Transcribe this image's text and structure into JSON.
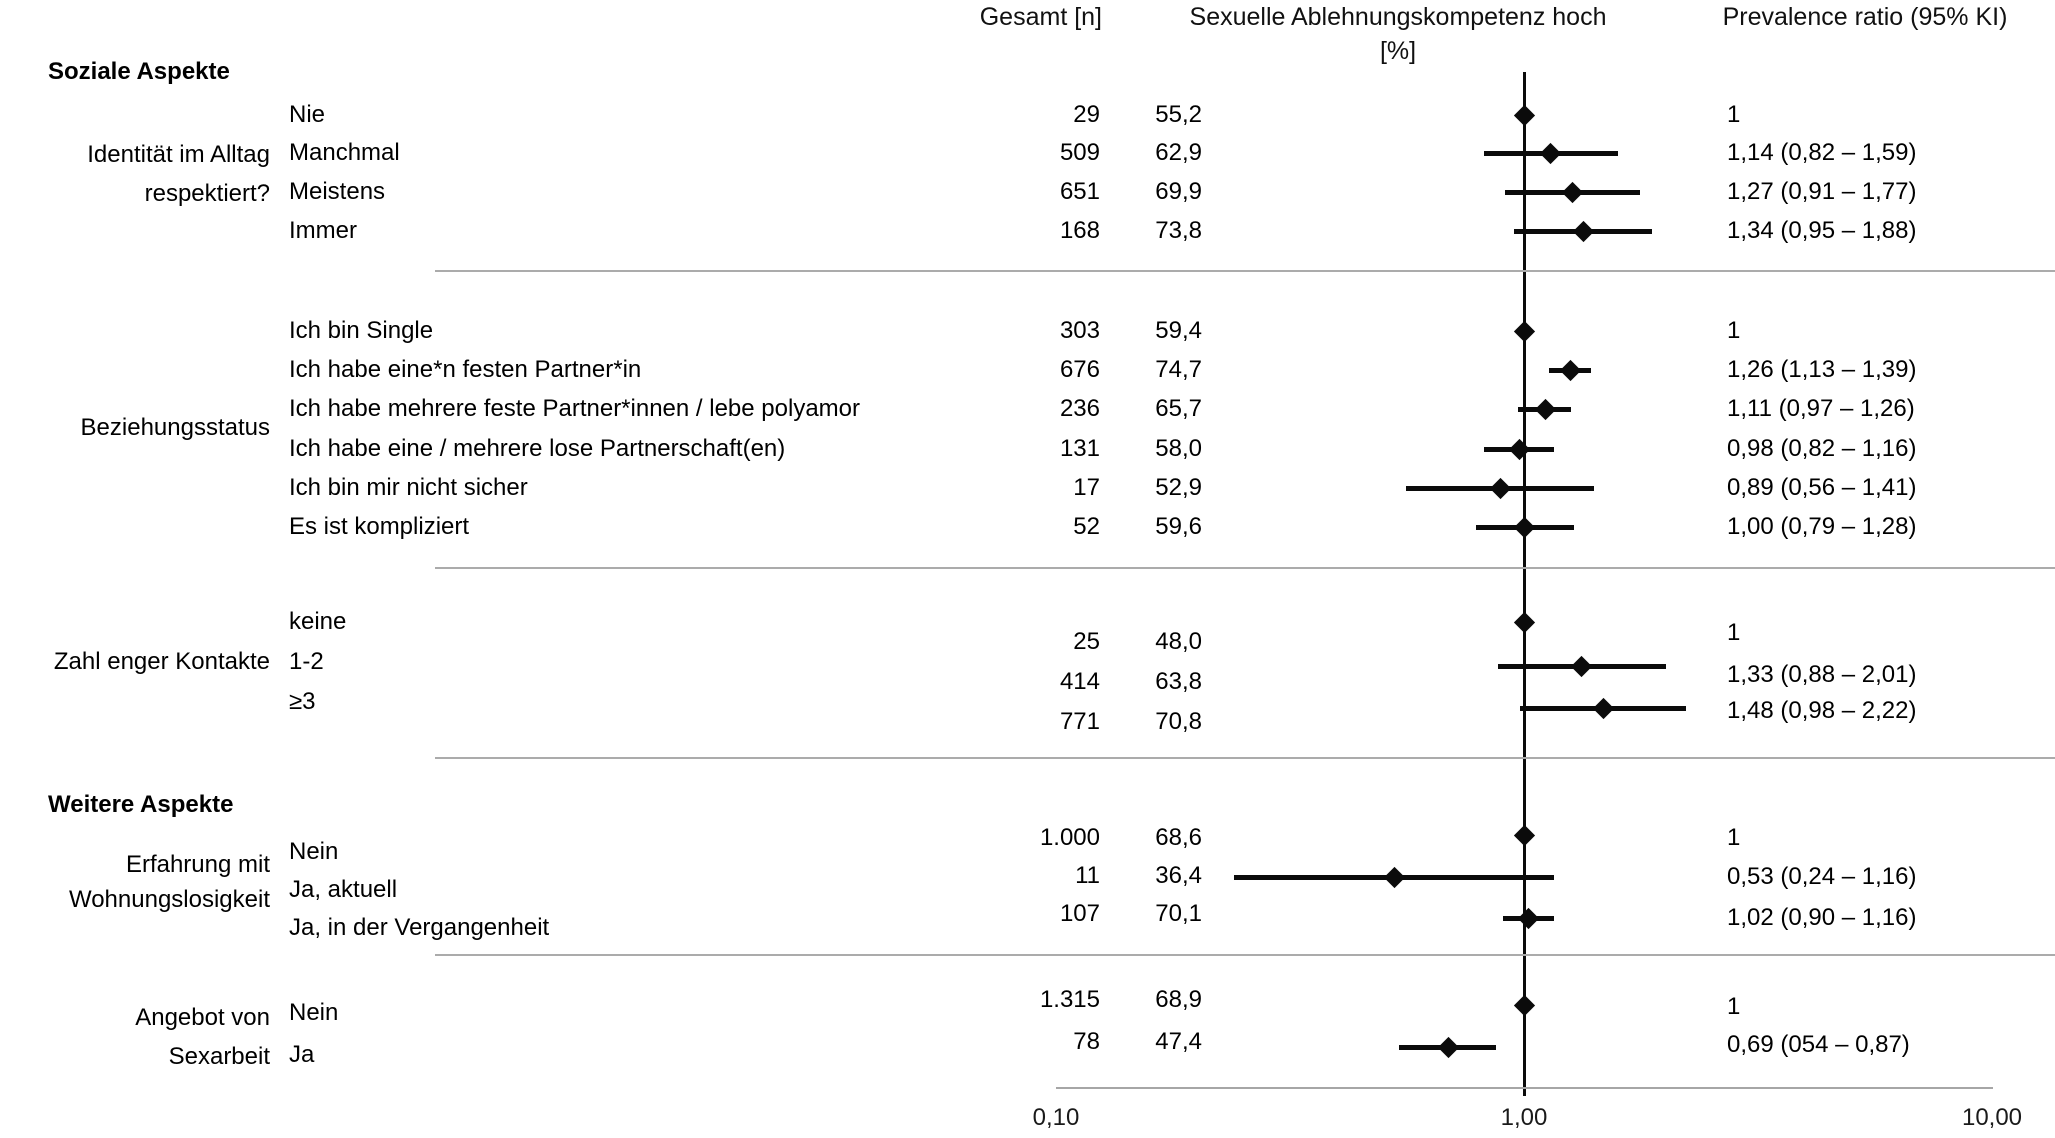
{
  "figure": {
    "columns": {
      "gesamt": "Gesamt [n]",
      "outcome_line1": "Sexuelle Ablehnungskompetenz hoch",
      "outcome_line2": "[%]",
      "pr": "Prevalence ratio (95% KI)"
    },
    "axis": {
      "scale": "log10",
      "ticks": [
        "0,10",
        "1,00",
        "10,00"
      ],
      "tick_values": [
        0.1,
        1.0,
        10.0
      ]
    }
  },
  "chart_data": {
    "type": "scatter",
    "subtype": "forest-plot",
    "title": "",
    "xlabel": "Prevalence ratio (95% KI)",
    "x_scale": "log",
    "xlim": [
      0.1,
      10
    ],
    "grid": false,
    "reference_line": 1.0,
    "sections": [
      {
        "section_header": "Soziale Aspekte",
        "group_label": [
          "Identität im Alltag",
          "respektiert?"
        ],
        "rows": [
          {
            "label": "Nie",
            "n": "29",
            "pct": "55,2",
            "pr_label": "1",
            "pr": 1.0,
            "ci_low": null,
            "ci_high": null,
            "reference": true
          },
          {
            "label": "Manchmal",
            "n": "509",
            "pct": "62,9",
            "pr_label": "1,14 (0,82 – 1,59)",
            "pr": 1.14,
            "ci_low": 0.82,
            "ci_high": 1.59,
            "reference": false
          },
          {
            "label": "Meistens",
            "n": "651",
            "pct": "69,9",
            "pr_label": "1,27 (0,91 – 1,77)",
            "pr": 1.27,
            "ci_low": 0.91,
            "ci_high": 1.77,
            "reference": false
          },
          {
            "label": "Immer",
            "n": "168",
            "pct": "73,8",
            "pr_label": "1,34 (0,95 – 1,88)",
            "pr": 1.34,
            "ci_low": 0.95,
            "ci_high": 1.88,
            "reference": false
          }
        ]
      },
      {
        "section_header": null,
        "group_label": [
          "Beziehungsstatus"
        ],
        "rows": [
          {
            "label": "Ich bin Single",
            "n": "303",
            "pct": "59,4",
            "pr_label": "1",
            "pr": 1.0,
            "ci_low": null,
            "ci_high": null,
            "reference": true
          },
          {
            "label": "Ich habe eine*n festen Partner*in",
            "n": "676",
            "pct": "74,7",
            "pr_label": "1,26 (1,13 – 1,39)",
            "pr": 1.26,
            "ci_low": 1.13,
            "ci_high": 1.39,
            "reference": false
          },
          {
            "label": "Ich habe mehrere feste Partner*innen / lebe polyamor",
            "n": "236",
            "pct": "65,7",
            "pr_label": "1,11 (0,97 – 1,26)",
            "pr": 1.11,
            "ci_low": 0.97,
            "ci_high": 1.26,
            "reference": false
          },
          {
            "label": "Ich habe eine / mehrere lose Partnerschaft(en)",
            "n": "131",
            "pct": "58,0",
            "pr_label": "0,98 (0,82 – 1,16)",
            "pr": 0.98,
            "ci_low": 0.82,
            "ci_high": 1.16,
            "reference": false
          },
          {
            "label": "Ich bin mir nicht sicher",
            "n": "17",
            "pct": "52,9",
            "pr_label": "0,89 (0,56 – 1,41)",
            "pr": 0.89,
            "ci_low": 0.56,
            "ci_high": 1.41,
            "reference": false
          },
          {
            "label": "Es ist kompliziert",
            "n": "52",
            "pct": "59,6",
            "pr_label": "1,00 (0,79 – 1,28)",
            "pr": 1.0,
            "ci_low": 0.79,
            "ci_high": 1.28,
            "reference": false
          }
        ]
      },
      {
        "section_header": null,
        "group_label": [
          "Zahl enger Kontakte"
        ],
        "rows": [
          {
            "label": "keine",
            "n": "25",
            "pct": "48,0",
            "pr_label": "1",
            "pr": 1.0,
            "ci_low": null,
            "ci_high": null,
            "reference": true
          },
          {
            "label": "1-2",
            "n": "414",
            "pct": "63,8",
            "pr_label": "1,33 (0,88 – 2,01)",
            "pr": 1.33,
            "ci_low": 0.88,
            "ci_high": 2.01,
            "reference": false
          },
          {
            "label": "≥3",
            "n": "771",
            "pct": "70,8",
            "pr_label": "1,48 (0,98 – 2,22)",
            "pr": 1.48,
            "ci_low": 0.98,
            "ci_high": 2.22,
            "reference": false
          }
        ]
      },
      {
        "section_header": "Weitere Aspekte",
        "group_label": [
          "Erfahrung mit",
          "Wohnungslosigkeit"
        ],
        "rows": [
          {
            "label": "Nein",
            "n": "1.000",
            "pct": "68,6",
            "pr_label": "1",
            "pr": 1.0,
            "ci_low": null,
            "ci_high": null,
            "reference": true
          },
          {
            "label": "Ja, aktuell",
            "n": "11",
            "pct": "36,4",
            "pr_label": "0,53 (0,24 – 1,16)",
            "pr": 0.53,
            "ci_low": 0.24,
            "ci_high": 1.16,
            "reference": false
          },
          {
            "label": "Ja, in der Vergangenheit",
            "n": "107",
            "pct": "70,1",
            "pr_label": "1,02 (0,90 – 1,16)",
            "pr": 1.02,
            "ci_low": 0.9,
            "ci_high": 1.16,
            "reference": false
          }
        ]
      },
      {
        "section_header": null,
        "group_label": [
          "Angebot von",
          "Sexarbeit"
        ],
        "rows": [
          {
            "label": "Nein",
            "n": "1.315",
            "pct": "68,9",
            "pr_label": "1",
            "pr": 1.0,
            "ci_low": null,
            "ci_high": null,
            "reference": true
          },
          {
            "label": "Ja",
            "n": "78",
            "pct": "47,4",
            "pr_label": "0,69 (054 – 0,87)",
            "pr": 0.69,
            "ci_low": 0.54,
            "ci_high": 0.87,
            "reference": false
          }
        ]
      }
    ]
  }
}
